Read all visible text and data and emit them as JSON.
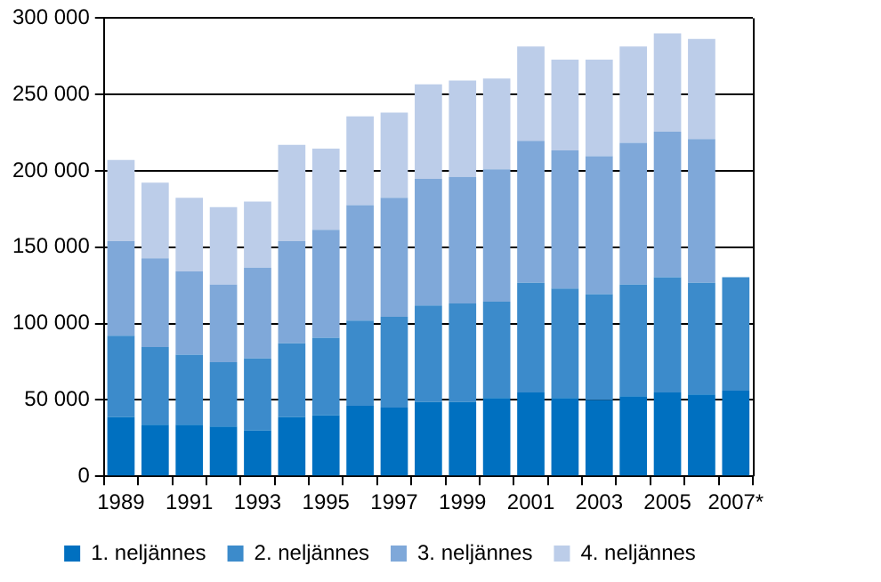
{
  "chart_data": {
    "type": "bar",
    "stacked": true,
    "categories": [
      "1989",
      null,
      "1991",
      null,
      "1993",
      null,
      "1995",
      null,
      "1997",
      null,
      "1999",
      null,
      "2001",
      null,
      "2003",
      null,
      "2005",
      null,
      "2007*"
    ],
    "series": [
      {
        "name": "1. neljännes",
        "color": "#0070c0",
        "values": [
          38800,
          33800,
          33800,
          32600,
          30100,
          38800,
          40000,
          46200,
          45000,
          48700,
          48700,
          51200,
          54900,
          51200,
          49900,
          52400,
          54900,
          53600,
          56100
        ]
      },
      {
        "name": "2. neljännes",
        "color": "#3c8bcb",
        "values": [
          53200,
          50800,
          45900,
          42100,
          47100,
          48300,
          50800,
          55700,
          59400,
          63100,
          64400,
          63100,
          71800,
          71800,
          69400,
          73100,
          75500,
          73100,
          74300
        ]
      },
      {
        "name": "3. neljännes",
        "color": "#7fa8d9",
        "values": [
          61900,
          58200,
          54400,
          50800,
          59400,
          66800,
          70600,
          75600,
          78000,
          83000,
          82900,
          86700,
          92900,
          90400,
          90300,
          92800,
          95300,
          94100,
          null
        ]
      },
      {
        "name": "4. neljännes",
        "color": "#bccde9",
        "values": [
          53300,
          49500,
          48300,
          50700,
          43300,
          63200,
          53200,
          58200,
          55700,
          61900,
          63200,
          59400,
          61900,
          59400,
          63200,
          63200,
          64400,
          65600,
          null
        ]
      }
    ],
    "ylim": [
      0,
      300000
    ],
    "yticks": [
      {
        "value": 0,
        "label": "0"
      },
      {
        "value": 50000,
        "label": "50 000"
      },
      {
        "value": 100000,
        "label": "100 000"
      },
      {
        "value": 150000,
        "label": "150 000"
      },
      {
        "value": 200000,
        "label": "200 000"
      },
      {
        "value": 250000,
        "label": "250 000"
      },
      {
        "value": 300000,
        "label": "300 000"
      }
    ],
    "grid": "y",
    "legend": "bottom"
  }
}
